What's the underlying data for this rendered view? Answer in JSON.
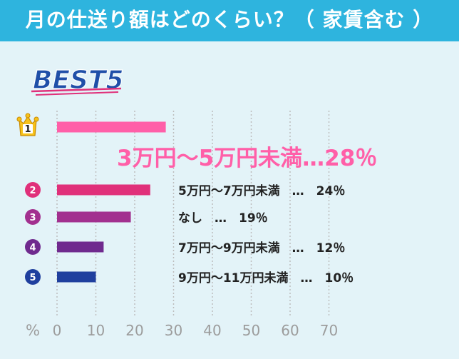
{
  "title": "月の仕送り額はどのくらい？（ 家賃含む ）",
  "badge": "BEST5",
  "chart_data": {
    "type": "bar",
    "orientation": "horizontal",
    "categories": [
      "3万円〜5万円未満",
      "5万円〜7万円未満",
      "なし",
      "7万円〜9万円未満",
      "9万円〜11万円未満"
    ],
    "values": [
      28,
      24,
      19,
      12,
      10
    ],
    "labels": [
      "3万円〜5万円未満…28％",
      "5万円〜7万円未満　…　24％",
      "なし　…　19％",
      "7万円〜9万円未満　…　12％",
      "9万円〜11万円未満　…　10％"
    ],
    "ranks": [
      "1",
      "2",
      "3",
      "4",
      "5"
    ],
    "colors": [
      "#ff5fa8",
      "#e0307a",
      "#a2308f",
      "#6f2a8e",
      "#1f3f9e"
    ],
    "xlim": [
      0,
      70
    ],
    "xticks": [
      "0",
      "10",
      "20",
      "30",
      "40",
      "50",
      "60",
      "70"
    ],
    "xlabel": "%",
    "grid": true
  }
}
